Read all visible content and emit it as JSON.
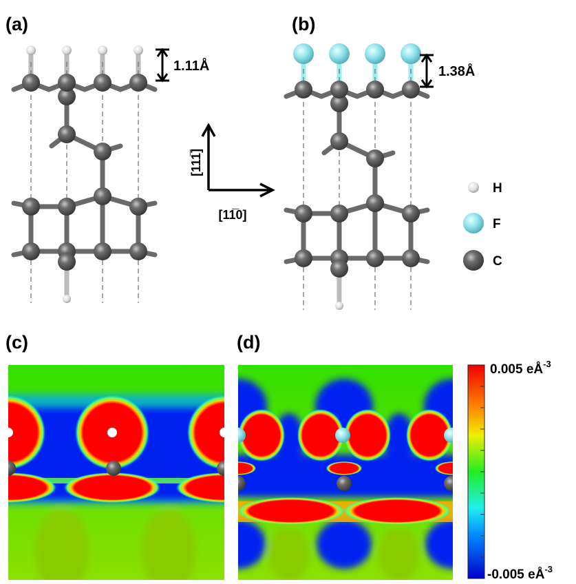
{
  "panels": {
    "a": {
      "label": "(a)",
      "spacing": "1.11Å"
    },
    "b": {
      "label": "(b)",
      "spacing": "1.38Å"
    },
    "c": {
      "label": "(c)"
    },
    "d": {
      "label": "(d)"
    }
  },
  "axes": {
    "vertical": "[111̅]",
    "horizontal": "[11̅0]"
  },
  "legend": [
    "H",
    "F",
    "C"
  ],
  "colorbar": {
    "max": {
      "text": "0.005 eÅ",
      "exponent": "-3"
    },
    "min": {
      "text": "-0.005 eÅ",
      "exponent": "-3"
    }
  }
}
